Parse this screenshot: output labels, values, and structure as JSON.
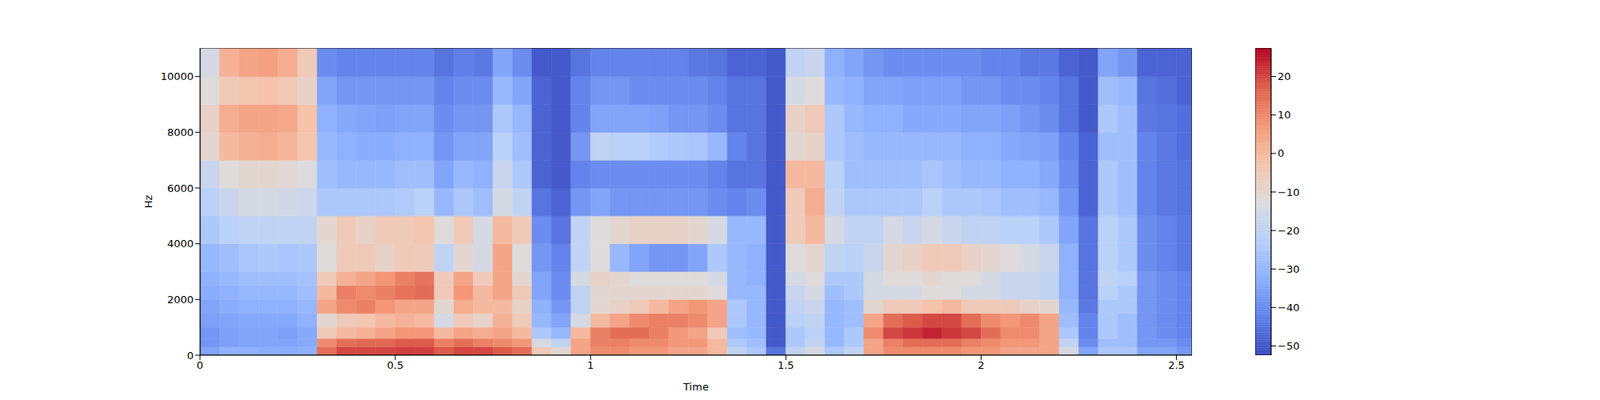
{
  "chart_data": {
    "type": "heatmap",
    "xlabel": "Time",
    "ylabel": "Hz",
    "color": "coolwarm",
    "xlim": [
      0,
      2.54
    ],
    "ylim": [
      0,
      11025
    ],
    "xticks": [
      0,
      0.5,
      1,
      1.5,
      2,
      2.5
    ],
    "yticks": [
      0,
      2000,
      4000,
      6000,
      8000,
      10000
    ],
    "time_edges": [
      0,
      0.05,
      0.1,
      0.15,
      0.2,
      0.25,
      0.3,
      0.35,
      0.4,
      0.45,
      0.5,
      0.55,
      0.6,
      0.65,
      0.7,
      0.75,
      0.8,
      0.85,
      0.9,
      0.95,
      1.0,
      1.05,
      1.1,
      1.15,
      1.2,
      1.25,
      1.3,
      1.35,
      1.4,
      1.45,
      1.5,
      1.55,
      1.6,
      1.65,
      1.7,
      1.75,
      1.8,
      1.85,
      1.9,
      1.95,
      2.0,
      2.05,
      2.1,
      2.15,
      2.2,
      2.25,
      2.3,
      2.35,
      2.4,
      2.45,
      2.5,
      2.54
    ],
    "freq_edges": [
      0,
      300,
      600,
      1000,
      1500,
      2000,
      2500,
      3000,
      4000,
      5000,
      6000,
      7000,
      8000,
      9000,
      10000,
      11025
    ],
    "cells": [
      [
        -35,
        -38,
        -38,
        -36,
        -35,
        -33,
        -32,
        -30,
        -25,
        -22,
        -18,
        -10,
        -8,
        -12,
        -15
      ],
      [
        -32,
        -36,
        -36,
        -35,
        -33,
        -32,
        -30,
        -28,
        -22,
        -18,
        -12,
        0,
        3,
        -5,
        2
      ],
      [
        -32,
        -35,
        -35,
        -34,
        -32,
        -30,
        -28,
        -26,
        -20,
        -15,
        -10,
        2,
        5,
        -3,
        5
      ],
      [
        -33,
        -35,
        -35,
        -34,
        -32,
        -30,
        -28,
        -25,
        -20,
        -15,
        -10,
        3,
        5,
        -2,
        6
      ],
      [
        -33,
        -35,
        -36,
        -34,
        -32,
        -30,
        -28,
        -26,
        -20,
        -16,
        -11,
        1,
        4,
        -4,
        3
      ],
      [
        -32,
        -34,
        -34,
        -32,
        -30,
        -28,
        -27,
        -25,
        -20,
        -17,
        -13,
        -3,
        -2,
        -8,
        -5
      ],
      [
        15,
        10,
        -5,
        -10,
        5,
        0,
        -5,
        -12,
        -10,
        -25,
        -28,
        -30,
        -32,
        -35,
        -40
      ],
      [
        20,
        15,
        0,
        -5,
        10,
        12,
        2,
        -5,
        -5,
        -25,
        -30,
        -32,
        -34,
        -38,
        -42
      ],
      [
        20,
        16,
        2,
        -3,
        12,
        10,
        5,
        -5,
        -8,
        -25,
        -30,
        -33,
        -35,
        -38,
        -42
      ],
      [
        20,
        16,
        5,
        0,
        8,
        12,
        8,
        -8,
        -5,
        -25,
        -30,
        -33,
        -36,
        -38,
        -42
      ],
      [
        21,
        18,
        8,
        2,
        5,
        14,
        12,
        -5,
        -5,
        -24,
        -28,
        -32,
        -35,
        -38,
        -42
      ],
      [
        21,
        18,
        8,
        0,
        5,
        15,
        14,
        -5,
        -3,
        -22,
        -28,
        -32,
        -35,
        -38,
        -42
      ],
      [
        18,
        12,
        0,
        -15,
        -10,
        -5,
        -5,
        -20,
        -12,
        -30,
        -35,
        -38,
        -40,
        -42,
        -45
      ],
      [
        20,
        15,
        5,
        -5,
        3,
        8,
        5,
        -10,
        -5,
        -25,
        -30,
        -35,
        -38,
        -40,
        -43
      ],
      [
        20,
        12,
        3,
        -8,
        0,
        0,
        -5,
        -15,
        -15,
        -28,
        -32,
        -35,
        -38,
        -40,
        -44
      ],
      [
        18,
        10,
        5,
        2,
        0,
        5,
        5,
        5,
        0,
        -15,
        -18,
        -22,
        -25,
        -30,
        -35
      ],
      [
        15,
        8,
        0,
        -5,
        -8,
        -5,
        -10,
        -12,
        -5,
        -20,
        -25,
        -28,
        -30,
        -35,
        -40
      ],
      [
        -5,
        -15,
        -25,
        -30,
        -32,
        -35,
        -35,
        -38,
        -40,
        -45,
        -48,
        -48,
        -48,
        -48,
        -50
      ],
      [
        -10,
        -20,
        -30,
        -35,
        -38,
        -40,
        -40,
        -42,
        -45,
        -48,
        -50,
        -50,
        -50,
        -50,
        -50
      ],
      [
        5,
        5,
        0,
        -15,
        -20,
        -20,
        -15,
        -20,
        -20,
        -38,
        -42,
        -38,
        -42,
        -42,
        -45
      ],
      [
        10,
        12,
        12,
        0,
        -10,
        -10,
        -8,
        -12,
        -12,
        -35,
        -40,
        -20,
        -35,
        -38,
        -42
      ],
      [
        10,
        12,
        15,
        5,
        -8,
        -10,
        -10,
        -30,
        -10,
        -38,
        -40,
        -22,
        -35,
        -38,
        -42
      ],
      [
        8,
        10,
        15,
        10,
        -5,
        -10,
        -12,
        -35,
        -8,
        -38,
        -40,
        -22,
        -35,
        -40,
        -42
      ],
      [
        8,
        10,
        12,
        12,
        0,
        -10,
        -12,
        -38,
        -8,
        -38,
        -40,
        -24,
        -36,
        -40,
        -42
      ],
      [
        5,
        8,
        8,
        12,
        5,
        -10,
        -12,
        -38,
        -8,
        -38,
        -40,
        -25,
        -38,
        -40,
        -42
      ],
      [
        5,
        8,
        5,
        10,
        8,
        -10,
        -12,
        -35,
        -10,
        -38,
        -40,
        -26,
        -38,
        -40,
        -44
      ],
      [
        0,
        0,
        -5,
        5,
        5,
        -12,
        -15,
        -25,
        -15,
        -40,
        -42,
        -30,
        -40,
        -42,
        -45
      ],
      [
        -20,
        -25,
        -28,
        -25,
        -25,
        -30,
        -30,
        -30,
        -30,
        -42,
        -45,
        -42,
        -45,
        -45,
        -48
      ],
      [
        -25,
        -28,
        -30,
        -30,
        -30,
        -30,
        -32,
        -32,
        -30,
        -40,
        -45,
        -45,
        -45,
        -45,
        -48
      ],
      [
        -45,
        -50,
        -50,
        -50,
        -50,
        -50,
        -50,
        -50,
        -50,
        -50,
        -50,
        -50,
        -50,
        -50,
        -50
      ],
      [
        -20,
        -25,
        -25,
        -22,
        -20,
        -18,
        -15,
        -12,
        -5,
        -5,
        0,
        -10,
        -8,
        -15,
        -20
      ],
      [
        -15,
        -20,
        -22,
        -20,
        -18,
        -15,
        -12,
        -10,
        0,
        3,
        0,
        -8,
        -5,
        -12,
        -18
      ],
      [
        -25,
        -30,
        -30,
        -30,
        -30,
        -28,
        -25,
        -20,
        -15,
        -20,
        -22,
        -25,
        -25,
        -30,
        -32
      ],
      [
        -20,
        -25,
        -25,
        -28,
        -28,
        -25,
        -25,
        -22,
        -20,
        -25,
        -28,
        -28,
        -30,
        -32,
        -35
      ],
      [
        5,
        5,
        10,
        5,
        -10,
        -15,
        -15,
        -18,
        -20,
        -25,
        -28,
        -30,
        -32,
        -35,
        -38
      ],
      [
        10,
        12,
        20,
        15,
        -5,
        -15,
        -12,
        -10,
        -15,
        -25,
        -28,
        -30,
        -32,
        -35,
        -40
      ],
      [
        10,
        15,
        22,
        18,
        -5,
        -15,
        -12,
        -8,
        -18,
        -25,
        -28,
        -30,
        -34,
        -36,
        -40
      ],
      [
        10,
        15,
        24,
        20,
        -2,
        -12,
        -10,
        -5,
        -15,
        -22,
        -26,
        -30,
        -34,
        -36,
        -40
      ],
      [
        10,
        15,
        22,
        20,
        0,
        -12,
        -12,
        -5,
        -18,
        -25,
        -28,
        -30,
        -34,
        -36,
        -40
      ],
      [
        8,
        12,
        20,
        15,
        -5,
        -15,
        -12,
        -8,
        -20,
        -25,
        -30,
        -32,
        -35,
        -38,
        -40
      ],
      [
        8,
        10,
        15,
        10,
        -5,
        -15,
        -15,
        -10,
        -20,
        -26,
        -30,
        -32,
        -35,
        -38,
        -42
      ],
      [
        5,
        8,
        10,
        8,
        -5,
        -18,
        -18,
        -12,
        -22,
        -28,
        -32,
        -34,
        -36,
        -40,
        -42
      ],
      [
        5,
        8,
        10,
        10,
        -8,
        -18,
        -18,
        -15,
        -22,
        -28,
        -32,
        -35,
        -38,
        -40,
        -44
      ],
      [
        5,
        5,
        5,
        5,
        -10,
        -20,
        -20,
        -18,
        -25,
        -30,
        -34,
        -36,
        -40,
        -42,
        -44
      ],
      [
        -15,
        -20,
        -25,
        -28,
        -30,
        -32,
        -32,
        -32,
        -35,
        -38,
        -40,
        -42,
        -45,
        -45,
        -48
      ],
      [
        -35,
        -40,
        -42,
        -42,
        -44,
        -45,
        -45,
        -45,
        -45,
        -48,
        -48,
        -48,
        -50,
        -50,
        -50
      ],
      [
        -25,
        -28,
        -25,
        -25,
        -25,
        -22,
        -20,
        -22,
        -22,
        -25,
        -25,
        -28,
        -25,
        -28,
        -35
      ],
      [
        -25,
        -28,
        -28,
        -28,
        -25,
        -25,
        -22,
        -25,
        -25,
        -28,
        -28,
        -28,
        -28,
        -30,
        -38
      ],
      [
        -35,
        -38,
        -38,
        -38,
        -38,
        -38,
        -38,
        -40,
        -40,
        -42,
        -42,
        -42,
        -44,
        -45,
        -48
      ],
      [
        -35,
        -38,
        -40,
        -40,
        -40,
        -40,
        -40,
        -42,
        -42,
        -44,
        -44,
        -44,
        -45,
        -46,
        -48
      ],
      [
        -38,
        -40,
        -42,
        -42,
        -42,
        -42,
        -42,
        -44,
        -44,
        -45,
        -45,
        -46,
        -46,
        -48,
        -48
      ]
    ],
    "colorbar": {
      "range": [
        -52.4,
        27.4
      ],
      "ticks": [
        {
          "value": -50,
          "label": "−50"
        },
        {
          "value": -40,
          "label": "−40"
        },
        {
          "value": -30,
          "label": "−30"
        },
        {
          "value": -20,
          "label": "−20"
        },
        {
          "value": -10,
          "label": "−10"
        },
        0,
        10,
        20
      ]
    }
  }
}
